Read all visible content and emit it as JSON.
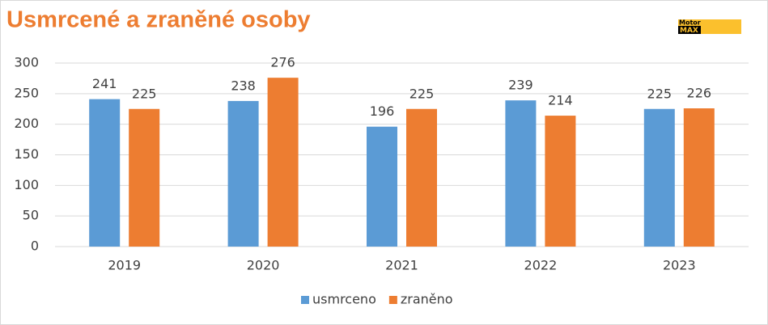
{
  "chart_data": {
    "type": "bar",
    "title": "Usmrcené a zraněné osoby",
    "categories": [
      "2019",
      "2020",
      "2021",
      "2022",
      "2023"
    ],
    "series": [
      {
        "name": "usmrceno",
        "color": "#5b9bd5",
        "values": [
          241,
          238,
          196,
          239,
          225
        ]
      },
      {
        "name": "zraněno",
        "color": "#ed7d31",
        "values": [
          225,
          276,
          225,
          214,
          226
        ]
      }
    ],
    "ylim": [
      0,
      300
    ],
    "yticks": [
      0,
      50,
      100,
      150,
      200,
      250,
      300
    ],
    "grid": true,
    "legend": "bottom"
  },
  "logo": {
    "top": "Motor",
    "bottom": "MAX"
  }
}
